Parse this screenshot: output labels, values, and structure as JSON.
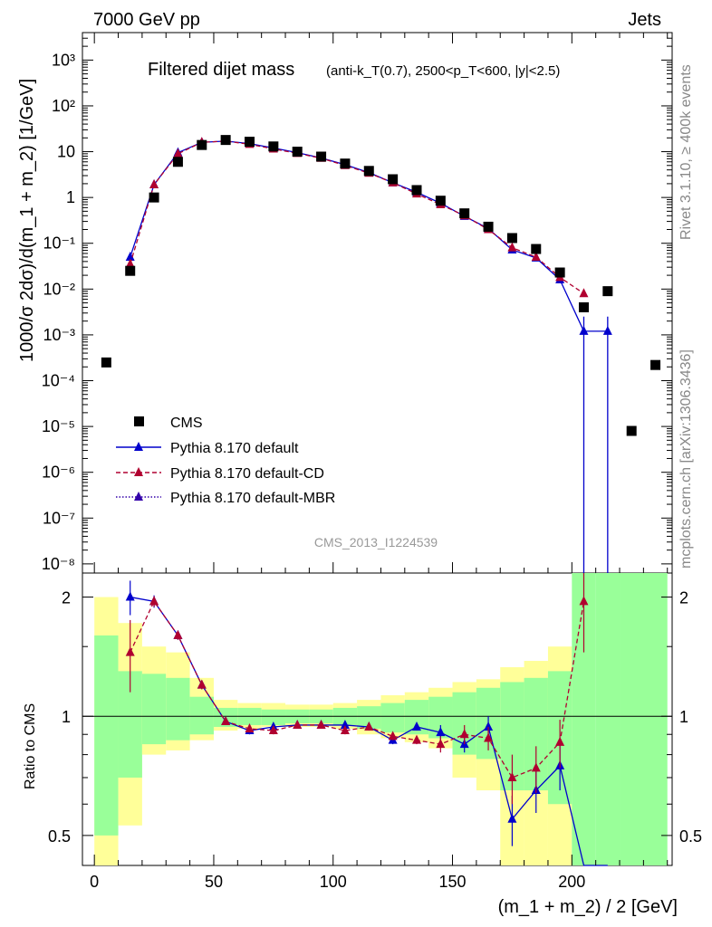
{
  "header": {
    "left": "7000 GeV pp",
    "right": "Jets"
  },
  "side_labels": {
    "rivet": "Rivet 3.1.10, ≥ 400k events",
    "mcplots": "mcplots.cern.ch [arXiv:1306.3436]"
  },
  "chart_data": {
    "title_main": "Filtered dijet mass",
    "title_cuts": "(anti-k_T(0.7), 2500<p_T<600, |y|<2.5)",
    "watermark": "CMS_2013_I1224539",
    "xlabel": "(m_1 + m_2) / 2 [GeV]",
    "ylabel_top": "1000/σ 2dσ)/d(m_1 + m_2) [1/GeV]",
    "ylabel_ratio": "Ratio to CMS",
    "x_ticks": [
      "0",
      "50",
      "100",
      "150",
      "200"
    ],
    "y_ticks_top": [
      "10⁻⁸",
      "10⁻⁷",
      "10⁻⁶",
      "10⁻⁵",
      "10⁻⁴",
      "10⁻³",
      "10⁻²",
      "10⁻¹",
      "1",
      "10",
      "10²",
      "10³"
    ],
    "y_ticks_ratio": [
      "0.5",
      "1",
      "2"
    ],
    "type": "scatter",
    "xlim": [
      -5,
      242
    ],
    "ylim_top_log10": [
      -8.2,
      3.6
    ],
    "ylim_ratio": [
      0.42,
      2.3
    ],
    "ratio_log_scale": true,
    "cms": {
      "name": "CMS",
      "x": [
        5,
        15,
        25,
        35,
        45,
        55,
        65,
        75,
        85,
        95,
        105,
        115,
        125,
        135,
        145,
        155,
        165,
        175,
        185,
        195,
        205,
        215,
        225,
        235
      ],
      "y": [
        0.00025,
        0.025,
        1.0,
        6.0,
        14.0,
        18.0,
        16.5,
        13.0,
        10.0,
        7.8,
        5.5,
        3.8,
        2.5,
        1.45,
        0.85,
        0.45,
        0.23,
        0.13,
        0.075,
        0.023,
        0.004,
        0.009,
        8e-06,
        0.00022
      ]
    },
    "series": [
      {
        "name": "Pythia 8.170 default",
        "color": "#0000cc",
        "x": [
          15,
          25,
          35,
          45,
          55,
          65,
          75,
          85,
          95,
          105,
          115,
          125,
          135,
          145,
          155,
          165,
          175,
          185,
          195,
          205,
          215
        ],
        "y": [
          0.05,
          1.9,
          9.5,
          16.0,
          17.0,
          15.0,
          12.0,
          9.5,
          7.3,
          5.2,
          3.5,
          2.1,
          1.3,
          0.75,
          0.39,
          0.21,
          0.072,
          0.048,
          0.016,
          0.0012,
          0.0012
        ],
        "ratio": [
          2.0,
          1.95,
          1.6,
          1.2,
          0.97,
          0.92,
          0.94,
          0.95,
          0.95,
          0.95,
          0.94,
          0.87,
          0.94,
          0.91,
          0.85,
          0.94,
          0.55,
          0.65,
          0.75,
          0.3,
          0.3
        ],
        "ratio_err": [
          0.2,
          0.07,
          0.04,
          0.03,
          0.02,
          0.02,
          0.02,
          0.02,
          0.02,
          0.02,
          0.02,
          0.02,
          0.02,
          0.04,
          0.04,
          0.06,
          0.08,
          0.08,
          0.1,
          0,
          0
        ]
      },
      {
        "name": "Pythia 8.170 default-CD",
        "color": "#b00030",
        "x": [
          15,
          25,
          35,
          45,
          55,
          65,
          75,
          85,
          95,
          105,
          115,
          125,
          135,
          145,
          155,
          165,
          175,
          185,
          195,
          205
        ],
        "y": [
          0.035,
          1.9,
          9.0,
          16.0,
          17.0,
          14.5,
          11.5,
          9.2,
          7.2,
          5.0,
          3.4,
          2.1,
          1.2,
          0.7,
          0.4,
          0.2,
          0.08,
          0.05,
          0.018,
          0.008
        ],
        "ratio": [
          1.45,
          1.95,
          1.6,
          1.2,
          0.97,
          0.93,
          0.92,
          0.95,
          0.95,
          0.92,
          0.94,
          0.89,
          0.87,
          0.85,
          0.9,
          0.88,
          0.7,
          0.74,
          0.86,
          1.95
        ],
        "ratio_err": [
          0.3,
          0.06,
          0.04,
          0.03,
          0.02,
          0.02,
          0.02,
          0.02,
          0.02,
          0.02,
          0.02,
          0.02,
          0.02,
          0.04,
          0.05,
          0.06,
          0.1,
          0.1,
          0.12,
          0.5
        ]
      },
      {
        "name": "Pythia 8.170 default-MBR",
        "color": "#3300aa",
        "x": [],
        "y": []
      }
    ],
    "bands": {
      "x_edges": [
        0,
        10,
        20,
        30,
        40,
        50,
        60,
        70,
        80,
        90,
        100,
        110,
        120,
        130,
        140,
        150,
        160,
        170,
        180,
        190,
        200,
        210,
        220,
        240
      ],
      "yellow_lo": [
        0.42,
        0.53,
        0.8,
        0.82,
        0.87,
        0.92,
        0.93,
        0.94,
        0.94,
        0.94,
        0.93,
        0.9,
        0.88,
        0.86,
        0.83,
        0.7,
        0.65,
        0.42,
        0.42,
        0.42,
        2.3,
        2.3,
        2.3
      ],
      "yellow_hi": [
        2.0,
        1.72,
        1.5,
        1.45,
        1.25,
        1.1,
        1.08,
        1.08,
        1.07,
        1.07,
        1.08,
        1.1,
        1.13,
        1.15,
        1.18,
        1.22,
        1.24,
        1.33,
        1.38,
        1.5,
        2.3,
        2.3,
        2.3
      ],
      "green_lo": [
        0.5,
        0.7,
        0.85,
        0.87,
        0.9,
        0.94,
        0.95,
        0.95,
        0.96,
        0.96,
        0.95,
        0.93,
        0.91,
        0.9,
        0.88,
        0.8,
        0.78,
        0.65,
        0.65,
        0.6,
        0.42,
        0.42,
        0.42
      ],
      "green_hi": [
        1.6,
        1.3,
        1.28,
        1.25,
        1.12,
        1.05,
        1.05,
        1.04,
        1.04,
        1.04,
        1.05,
        1.06,
        1.08,
        1.1,
        1.12,
        1.15,
        1.18,
        1.22,
        1.25,
        1.3,
        2.3,
        2.3,
        2.3
      ]
    }
  }
}
